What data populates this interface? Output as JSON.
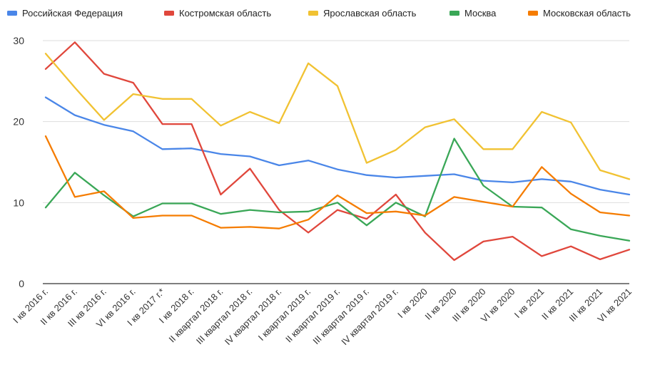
{
  "chart_data": {
    "type": "line",
    "title": "",
    "xlabel": "",
    "ylabel": "",
    "ylim": [
      0,
      30
    ],
    "yticks": [
      0,
      10,
      20,
      30
    ],
    "grid": true,
    "legend_position": "top",
    "categories": [
      "I кв 2016 г.",
      "II кв 2016 г.",
      "III кв 2016 г.",
      "VI кв 2016 г.",
      "I кв 2017 г.*",
      "I кв 2018 г.",
      "II квартал 2018 г.",
      "III квартал 2018 г.",
      "IV квартал 2018 г.",
      "I квартал 2019 г.",
      "II квартал 2019 г.",
      "III квартал 2019 г.",
      "IV квартал 2019 г.",
      "I кв 2020",
      "II кв 2020",
      "III кв 2020",
      "VI кв 2020",
      "I кв 2021",
      "II кв 2021",
      "III кв 2021",
      "VI кв 2021"
    ],
    "series": [
      {
        "name": "Российская Федерация",
        "color": "#4a86e8",
        "values": [
          23.0,
          20.8,
          19.6,
          18.8,
          16.6,
          16.7,
          16.0,
          15.7,
          14.6,
          15.2,
          14.1,
          13.4,
          13.1,
          13.3,
          13.5,
          12.7,
          12.5,
          12.9,
          12.6,
          11.6,
          11.0
        ]
      },
      {
        "name": "Костромская область",
        "color": "#e0473c",
        "values": [
          26.5,
          29.8,
          25.9,
          24.8,
          19.7,
          19.7,
          11.0,
          14.2,
          9.1,
          6.3,
          9.1,
          8.0,
          11.0,
          6.3,
          2.9,
          5.2,
          5.8,
          3.4,
          4.6,
          3.0,
          4.2
        ]
      },
      {
        "name": "Ярославская область",
        "color": "#f1c232",
        "values": [
          28.4,
          24.2,
          20.2,
          23.4,
          22.8,
          22.8,
          19.5,
          21.2,
          19.8,
          27.2,
          24.4,
          14.9,
          16.5,
          19.3,
          20.3,
          16.6,
          16.6,
          21.2,
          19.9,
          14.0,
          12.9
        ]
      },
      {
        "name": "Москва",
        "color": "#3aa757",
        "values": [
          9.4,
          13.7,
          10.9,
          8.3,
          9.9,
          9.9,
          8.6,
          9.1,
          8.8,
          8.9,
          10.0,
          7.2,
          10.0,
          8.3,
          17.9,
          12.1,
          9.5,
          9.4,
          6.7,
          5.9,
          5.3
        ]
      },
      {
        "name": "Московская область",
        "color": "#f57c00",
        "values": [
          18.2,
          10.7,
          11.4,
          8.1,
          8.4,
          8.4,
          6.9,
          7.0,
          6.8,
          7.9,
          10.9,
          8.7,
          8.9,
          8.4,
          10.7,
          10.1,
          9.5,
          14.4,
          11.1,
          8.8,
          8.4
        ]
      }
    ]
  }
}
